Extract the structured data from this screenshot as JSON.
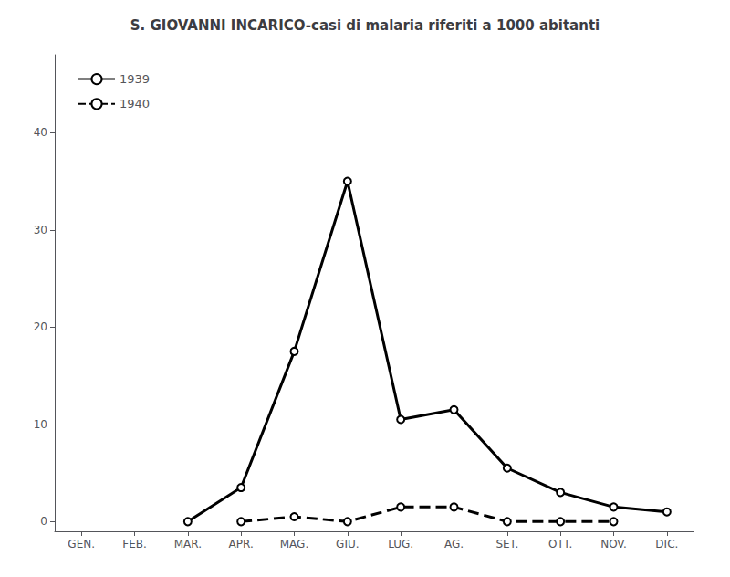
{
  "chart_data": {
    "type": "line",
    "title": "S. GIOVANNI INCARICO-casi di malaria riferiti a 1000 abitanti",
    "categories": [
      "GEN.",
      "FEB.",
      "MAR.",
      "APR.",
      "MAG.",
      "GIU.",
      "LUG.",
      "AG.",
      "SET.",
      "OTT.",
      "NOV.",
      "DIC."
    ],
    "series": [
      {
        "name": "1939",
        "color": "#000000",
        "line_style": "solid",
        "marker": "circle",
        "values": [
          null,
          null,
          0,
          3.5,
          17.5,
          35,
          10.5,
          11.5,
          5.5,
          3.0,
          1.5,
          1.0
        ]
      },
      {
        "name": "1940",
        "color": "#000000",
        "line_style": "dashed",
        "marker": "circle",
        "values": [
          null,
          null,
          null,
          0,
          0.5,
          0,
          1.5,
          1.5,
          0,
          0,
          0,
          null
        ]
      }
    ],
    "ylim": [
      -1,
      48
    ],
    "yticks": [
      0,
      10,
      20,
      30,
      40
    ],
    "grid": false,
    "legend": "upper left"
  }
}
